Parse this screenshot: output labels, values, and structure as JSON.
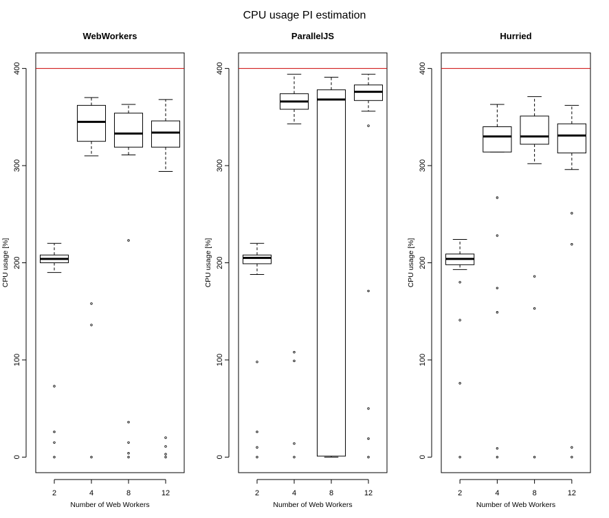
{
  "title": "CPU usage PI estimation",
  "chart_data": [
    {
      "type": "boxplot",
      "title": "WebWorkers",
      "xlabel": "Number of Web Workers",
      "ylabel": "CPU usage [%]",
      "ylim": [
        -16,
        416
      ],
      "yticks": [
        0,
        100,
        200,
        300,
        400
      ],
      "reference_line": {
        "y": 400,
        "color": "#cc0000"
      },
      "categories": [
        "2",
        "4",
        "8",
        "12"
      ],
      "boxes": [
        {
          "whisker_low": 190,
          "q1": 200,
          "median": 204,
          "q3": 208,
          "whisker_high": 220,
          "outliers": [
            73,
            26,
            15,
            0
          ]
        },
        {
          "whisker_low": 310,
          "q1": 325,
          "median": 345,
          "q3": 362,
          "whisker_high": 370,
          "outliers": [
            158,
            136,
            0
          ]
        },
        {
          "whisker_low": 311,
          "q1": 319,
          "median": 333,
          "q3": 354,
          "whisker_high": 363,
          "outliers": [
            223,
            36,
            15,
            4,
            0
          ]
        },
        {
          "whisker_low": 294,
          "q1": 319,
          "median": 334,
          "q3": 346,
          "whisker_high": 368,
          "outliers": [
            20,
            11,
            3,
            0
          ]
        }
      ]
    },
    {
      "type": "boxplot",
      "title": "ParallelJS",
      "xlabel": "Number of Web Workers",
      "ylabel": "CPU usage [%]",
      "ylim": [
        -16,
        416
      ],
      "yticks": [
        0,
        100,
        200,
        300,
        400
      ],
      "reference_line": {
        "y": 400,
        "color": "#cc0000"
      },
      "categories": [
        "2",
        "4",
        "8",
        "12"
      ],
      "boxes": [
        {
          "whisker_low": 188,
          "q1": 199,
          "median": 205,
          "q3": 208,
          "whisker_high": 220,
          "outliers": [
            98,
            26,
            10,
            0
          ]
        },
        {
          "whisker_low": 343,
          "q1": 358,
          "median": 366,
          "q3": 374,
          "whisker_high": 394,
          "outliers": [
            108,
            99,
            14,
            0
          ]
        },
        {
          "whisker_low": 0,
          "q1": 1,
          "median": 368,
          "q3": 378,
          "whisker_high": 391,
          "outliers": []
        },
        {
          "whisker_low": 356,
          "q1": 367,
          "median": 376,
          "q3": 383,
          "whisker_high": 394,
          "outliers": [
            341,
            171,
            50,
            19,
            0
          ]
        }
      ]
    },
    {
      "type": "boxplot",
      "title": "Hurried",
      "xlabel": "Number of Web Workers",
      "ylabel": "CPU usage [%]",
      "ylim": [
        -16,
        416
      ],
      "yticks": [
        0,
        100,
        200,
        300,
        400
      ],
      "reference_line": {
        "y": 400,
        "color": "#cc0000"
      },
      "categories": [
        "2",
        "4",
        "8",
        "12"
      ],
      "boxes": [
        {
          "whisker_low": 193,
          "q1": 198,
          "median": 204,
          "q3": 209,
          "whisker_high": 224,
          "outliers": [
            180,
            141,
            76,
            0
          ]
        },
        {
          "whisker_low": 314,
          "q1": 314,
          "median": 330,
          "q3": 340,
          "whisker_high": 363,
          "outliers": [
            267,
            228,
            174,
            149,
            9,
            0
          ]
        },
        {
          "whisker_low": 302,
          "q1": 322,
          "median": 330,
          "q3": 351,
          "whisker_high": 371,
          "outliers": [
            186,
            153,
            0
          ]
        },
        {
          "whisker_low": 296,
          "q1": 313,
          "median": 331,
          "q3": 343,
          "whisker_high": 362,
          "outliers": [
            251,
            219,
            10,
            0
          ]
        }
      ]
    }
  ]
}
